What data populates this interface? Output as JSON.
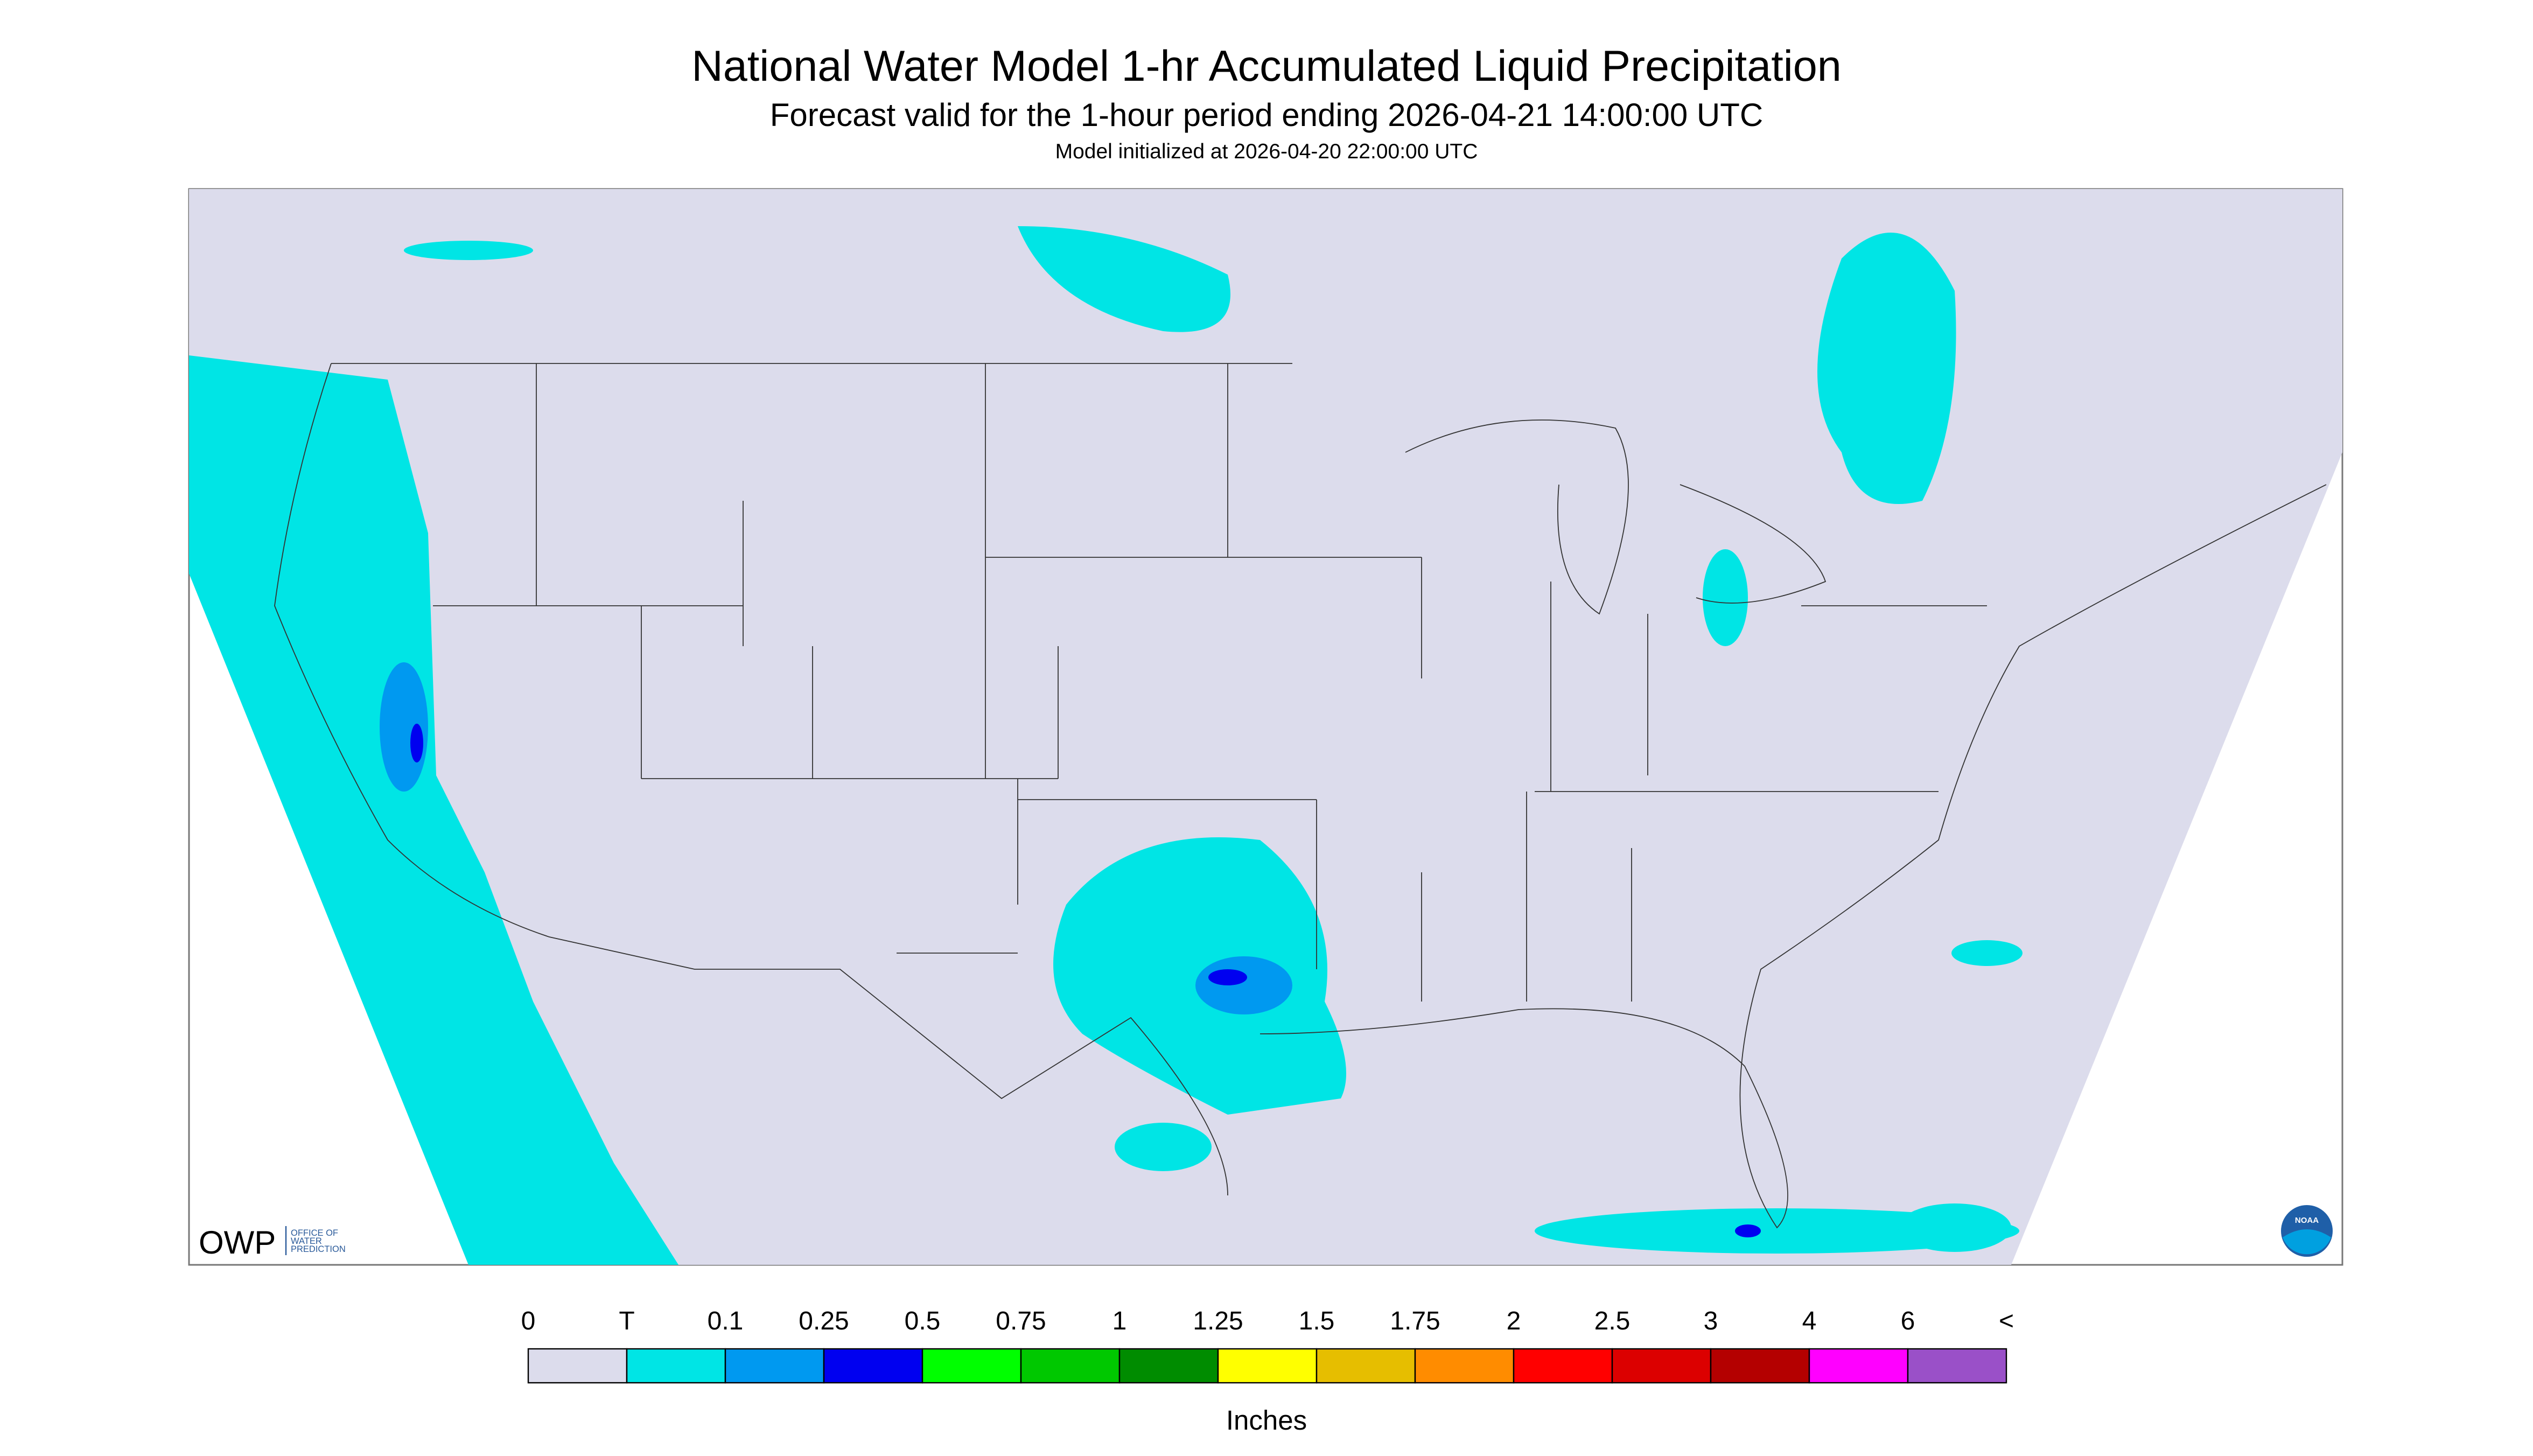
{
  "header": {
    "title": "National Water Model 1-hr Accumulated Liquid Precipitation",
    "subtitle": "Forecast valid for the 1-hour period ending 2026-04-21 14:00:00 UTC",
    "init": "Model initialized at 2026-04-20 22:00:00 UTC"
  },
  "legend": {
    "labels": [
      "0",
      "T",
      "0.1",
      "0.25",
      "0.5",
      "0.75",
      "1",
      "1.25",
      "1.5",
      "1.75",
      "2",
      "2.5",
      "3",
      "4",
      "6",
      "<"
    ],
    "colors": [
      "#dcdcec",
      "#00e5e5",
      "#0099f0",
      "#0000f0",
      "#00ff00",
      "#00c800",
      "#008c00",
      "#ffff00",
      "#e6be00",
      "#ff8c00",
      "#ff0000",
      "#dc0000",
      "#b40000",
      "#ff00ff",
      "#9a50c8"
    ],
    "unit": "Inches"
  },
  "logos": {
    "owp": "OWP",
    "owp_name": [
      "OFFICE OF",
      "WATER",
      "PREDICTION"
    ],
    "noaa": "NOAA"
  }
}
